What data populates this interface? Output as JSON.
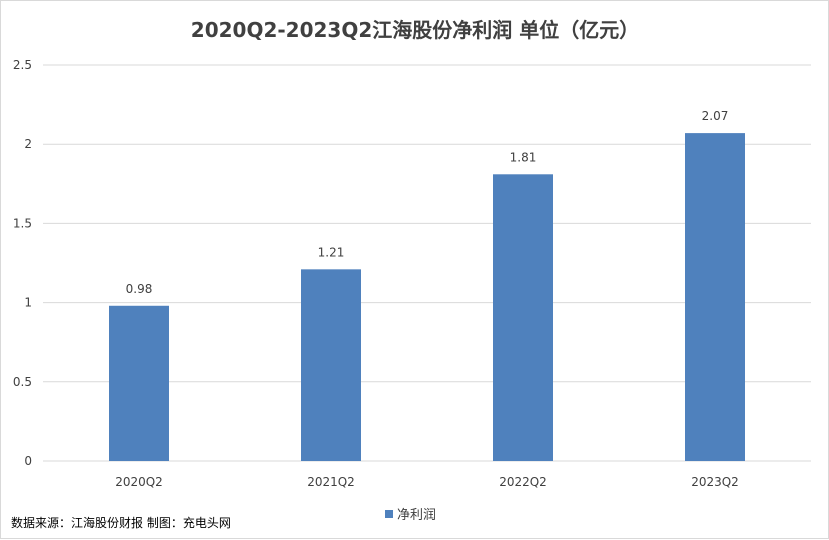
{
  "chart_data": {
    "type": "bar",
    "title": "2020Q2-2023Q2江海股份净利润  单位（亿元）",
    "categories": [
      "2020Q2",
      "2021Q2",
      "2022Q2",
      "2023Q2"
    ],
    "series": [
      {
        "name": "净利润",
        "values": [
          0.98,
          1.21,
          1.81,
          2.07
        ],
        "labels": [
          "0.98",
          "1.21",
          "1.81",
          "2.07"
        ],
        "color": "#4f81bd"
      }
    ],
    "y_ticks": [
      "0",
      "0.5",
      "1",
      "1.5",
      "2",
      "2.5"
    ],
    "ylim": [
      0,
      2.5
    ],
    "grid": true,
    "legend_position": "bottom"
  },
  "source_note": "数据来源：江海股份财报  制图：充电头网",
  "colors": {
    "bar": "#4f81bd",
    "gridline": "#d9d9d9",
    "text": "#404040"
  }
}
